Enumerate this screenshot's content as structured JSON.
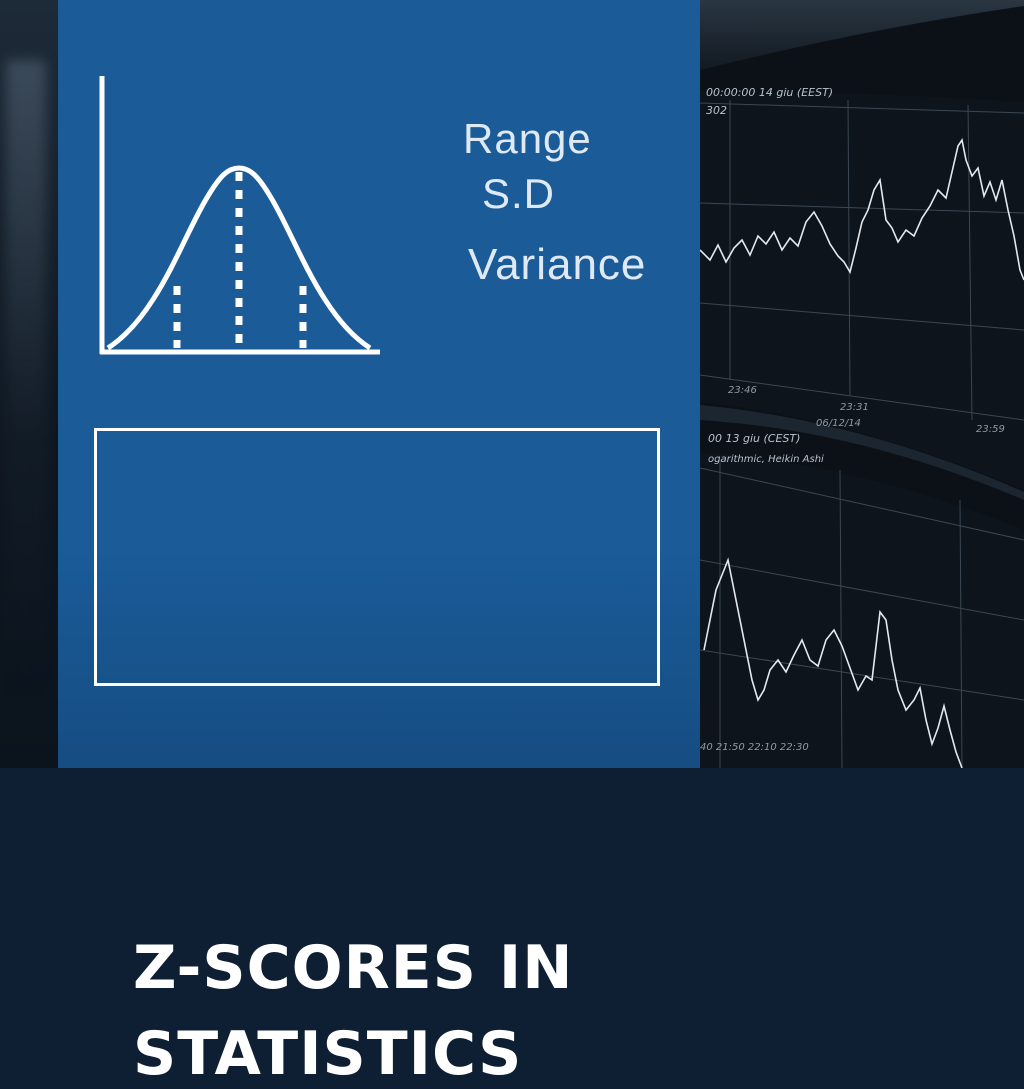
{
  "graphic": {
    "terms": [
      "Range",
      "S.D",
      "Variance"
    ],
    "title_lines": [
      "Z-SCORES IN",
      "STATISTICS"
    ],
    "icon": "normal-distribution-icon"
  },
  "background_monitor": {
    "upper_chart_header": "00:00:00  14 giu (EEST)",
    "upper_chart_value": "302",
    "upper_ticks": [
      "23:46",
      "23:31",
      "06/12/14",
      "23:59"
    ],
    "lower_chart_header": "00  13 giu (CEST)",
    "lower_chart_subheader": "ogarithmic, Heikin Ashi",
    "lower_ticks": "40 21:50 22:10 22:30"
  },
  "colors": {
    "panel": "#1a5b98",
    "text": "#ffffff",
    "term_text": "#dfe9f4"
  }
}
